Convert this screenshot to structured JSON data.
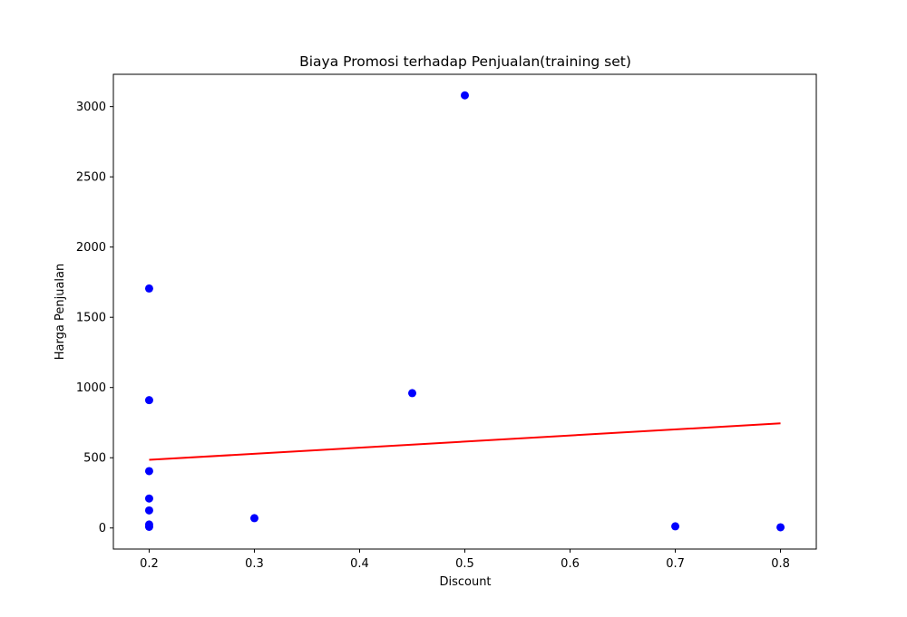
{
  "chart_data": {
    "type": "scatter",
    "title": "Biaya Promosi terhadap Penjualan(training set)",
    "xlabel": "Discount",
    "ylabel": "Harga Penjualan",
    "xlim": [
      0.166,
      0.834
    ],
    "ylim": [
      -150,
      3230
    ],
    "xticks": [
      0.2,
      0.3,
      0.4,
      0.5,
      0.6,
      0.7,
      0.8
    ],
    "yticks": [
      0,
      500,
      1000,
      1500,
      2000,
      2500,
      3000
    ],
    "xtick_labels": [
      "0.2",
      "0.3",
      "0.4",
      "0.5",
      "0.6",
      "0.7",
      "0.8"
    ],
    "ytick_labels": [
      "0",
      "500",
      "1000",
      "1500",
      "2000",
      "2500",
      "3000"
    ],
    "grid": false,
    "series": [
      {
        "kind": "scatter",
        "color": "#0000ff",
        "points": [
          {
            "x": 0.2,
            "y": 1705
          },
          {
            "x": 0.2,
            "y": 910
          },
          {
            "x": 0.2,
            "y": 405
          },
          {
            "x": 0.2,
            "y": 210
          },
          {
            "x": 0.2,
            "y": 125
          },
          {
            "x": 0.2,
            "y": 25
          },
          {
            "x": 0.2,
            "y": 8
          },
          {
            "x": 0.3,
            "y": 70
          },
          {
            "x": 0.45,
            "y": 960
          },
          {
            "x": 0.5,
            "y": 3080
          },
          {
            "x": 0.7,
            "y": 12
          },
          {
            "x": 0.8,
            "y": 5
          }
        ]
      },
      {
        "kind": "line",
        "color": "#ff0000",
        "points": [
          {
            "x": 0.2,
            "y": 485
          },
          {
            "x": 0.8,
            "y": 745
          }
        ]
      }
    ]
  }
}
